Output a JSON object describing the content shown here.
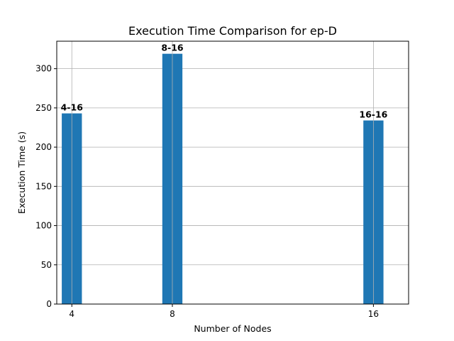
{
  "chart_data": {
    "type": "bar",
    "title": "Execution Time Comparison for ep-D",
    "xlabel": "Number of Nodes",
    "ylabel": "Execution Time (s)",
    "x": [
      4,
      8,
      16
    ],
    "x_tick_labels": [
      "4",
      "8",
      "16"
    ],
    "values": [
      243,
      319,
      234
    ],
    "data_labels": [
      "4-16",
      "8-16",
      "16-16"
    ],
    "xlim": [
      3.4,
      17.4
    ],
    "ylim": [
      0,
      335
    ],
    "y_ticks": [
      0,
      50,
      100,
      150,
      200,
      250,
      300
    ],
    "bar_width": 0.8,
    "bar_color": "#1f77b4",
    "grid": true,
    "legend": "none"
  }
}
